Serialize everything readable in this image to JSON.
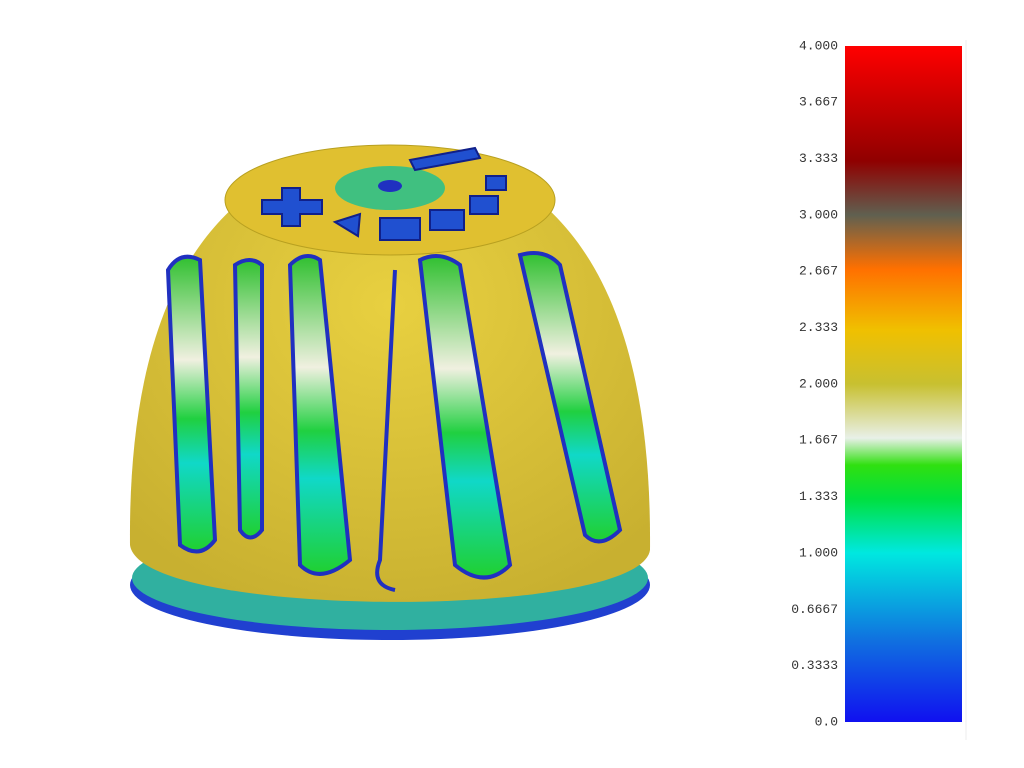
{
  "colorbar": {
    "range": [
      0,
      4
    ],
    "ticks": [
      {
        "value": 4,
        "label": "4.000"
      },
      {
        "value": 3.667,
        "label": "3.667"
      },
      {
        "value": 3.333,
        "label": "3.333"
      },
      {
        "value": 3,
        "label": "3.000"
      },
      {
        "value": 2.667,
        "label": "2.667"
      },
      {
        "value": 2.333,
        "label": "2.333"
      },
      {
        "value": 2,
        "label": "2.000"
      },
      {
        "value": 1.667,
        "label": "1.667"
      },
      {
        "value": 1.333,
        "label": "1.333"
      },
      {
        "value": 1,
        "label": "1.000"
      },
      {
        "value": 0.6667,
        "label": "0.6667"
      },
      {
        "value": 0.3333,
        "label": "0.3333"
      },
      {
        "value": 0,
        "label": "0.0"
      }
    ]
  }
}
